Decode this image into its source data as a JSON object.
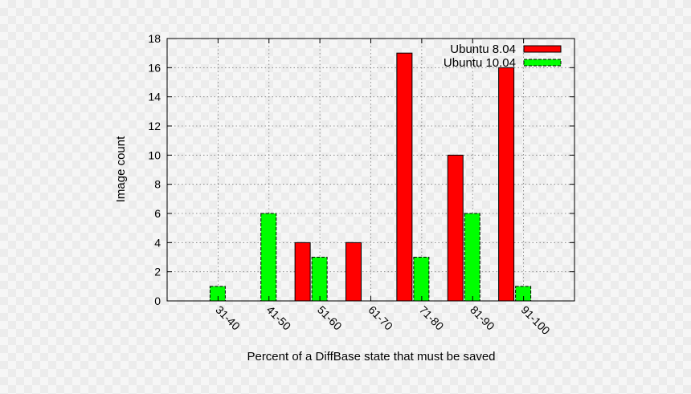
{
  "chart_data": {
    "type": "bar",
    "title": "",
    "xlabel": "Percent of a DiffBase state that must be saved",
    "ylabel": "Image count",
    "categories": [
      "31-40",
      "41-50",
      "51-60",
      "61-70",
      "71-80",
      "81-90",
      "91-100"
    ],
    "series": [
      {
        "name": "Ubuntu 8.04",
        "color": "#ff0000",
        "values": [
          0,
          0,
          4,
          4,
          17,
          10,
          16
        ]
      },
      {
        "name": "Ubuntu 10.04",
        "color": "#00ff00",
        "values": [
          1,
          6,
          3,
          0,
          3,
          6,
          1
        ]
      }
    ],
    "ylim": [
      0,
      18
    ],
    "yticks": [
      "0",
      "2",
      "4",
      "6",
      "8",
      "10",
      "12",
      "14",
      "16",
      "18"
    ],
    "grid": true,
    "legend_position": "top-right"
  }
}
